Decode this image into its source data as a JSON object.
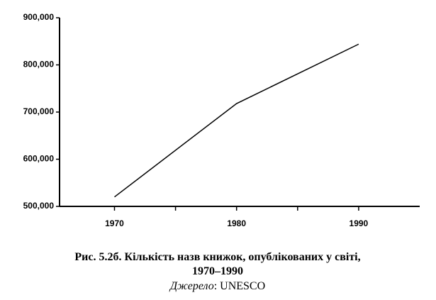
{
  "chart_data": {
    "type": "line",
    "x": [
      1970,
      1980,
      1990
    ],
    "series": [
      {
        "color": "#000000",
        "values": [
          520000,
          718000,
          844000
        ]
      }
    ],
    "xlim": [
      1965.5,
      1995
    ],
    "xticks": [
      1970,
      1980,
      1990
    ],
    "xminorticks": [
      1975,
      1985
    ],
    "ylim": [
      500000,
      900000
    ],
    "yticks": [
      {
        "value": 500000,
        "label": "500,000"
      },
      {
        "value": 600000,
        "label": "600,000"
      },
      {
        "value": 700000,
        "label": "700,000"
      },
      {
        "value": 800000,
        "label": "800,000"
      },
      {
        "value": 900000,
        "label": "900,000"
      }
    ],
    "grid": false
  },
  "caption": {
    "lines": [
      "Рис. 5.2б. Кількість назв книжок, опублікованих у світі,",
      "1970–1990"
    ],
    "source_label": "Джерело",
    "source_text": ": UNESCO"
  }
}
